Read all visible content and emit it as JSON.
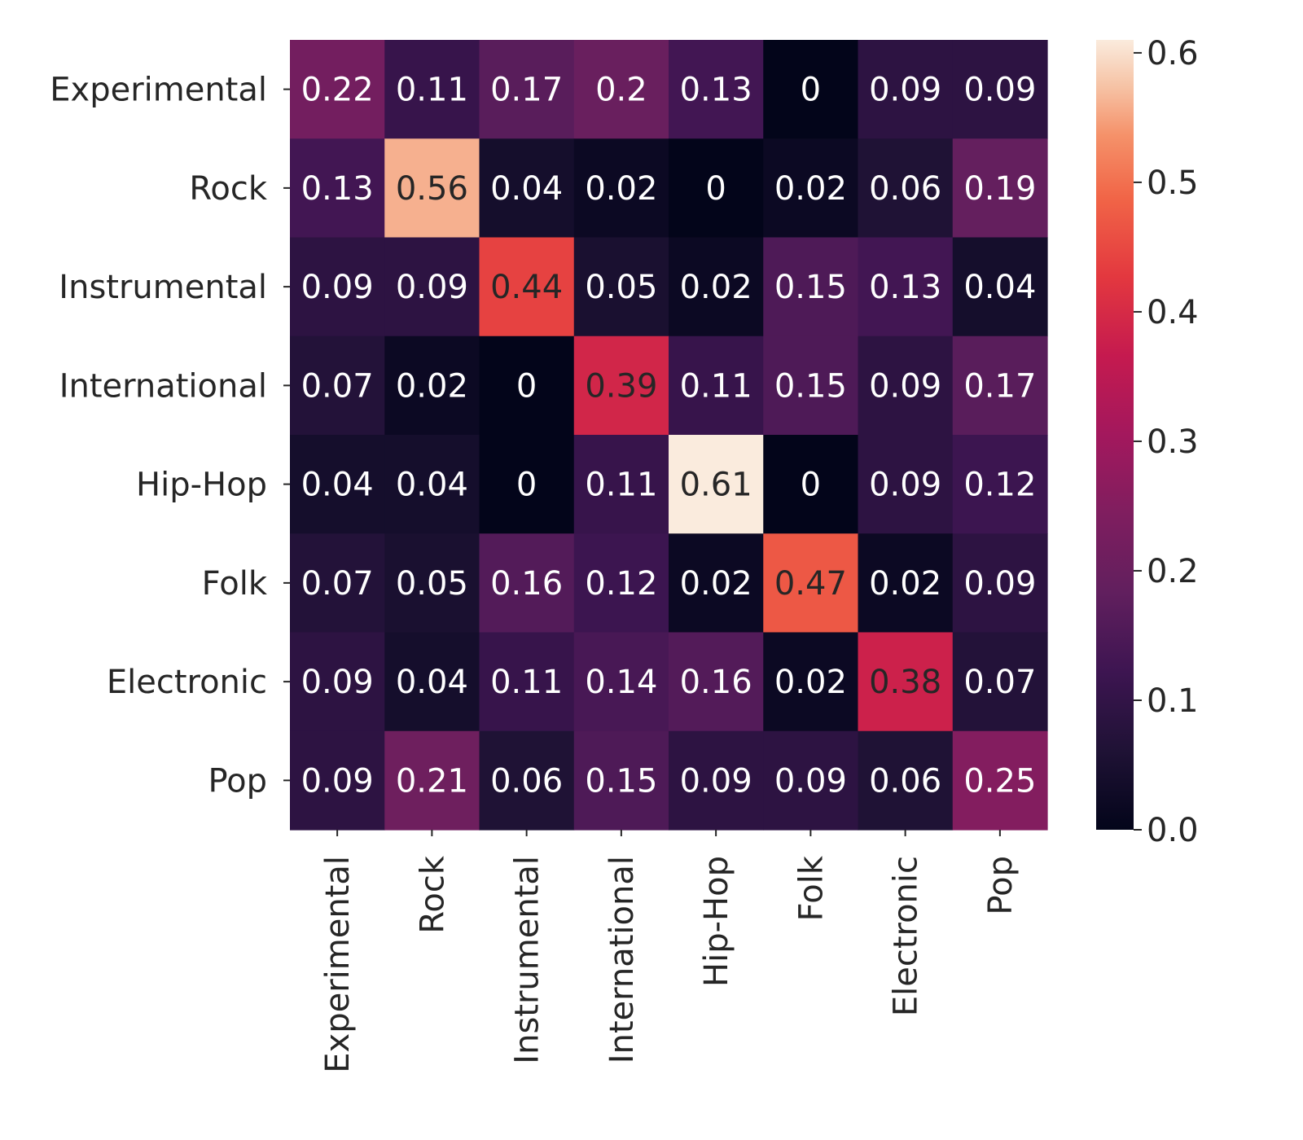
{
  "chart_data": {
    "type": "heatmap",
    "row_labels": [
      "Experimental",
      "Rock",
      "Instrumental",
      "International",
      "Hip-Hop",
      "Folk",
      "Electronic",
      "Pop"
    ],
    "col_labels": [
      "Experimental",
      "Rock",
      "Instrumental",
      "International",
      "Hip-Hop",
      "Folk",
      "Electronic",
      "Pop"
    ],
    "values": [
      [
        0.22,
        0.11,
        0.17,
        0.2,
        0.13,
        0,
        0.09,
        0.09
      ],
      [
        0.13,
        0.56,
        0.04,
        0.02,
        0,
        0.02,
        0.06,
        0.19
      ],
      [
        0.09,
        0.09,
        0.44,
        0.05,
        0.02,
        0.15,
        0.13,
        0.04
      ],
      [
        0.07,
        0.02,
        0,
        0.39,
        0.11,
        0.15,
        0.09,
        0.17
      ],
      [
        0.04,
        0.04,
        0,
        0.11,
        0.61,
        0,
        0.09,
        0.12
      ],
      [
        0.07,
        0.05,
        0.16,
        0.12,
        0.02,
        0.47,
        0.02,
        0.09
      ],
      [
        0.09,
        0.04,
        0.11,
        0.14,
        0.16,
        0.02,
        0.38,
        0.07
      ],
      [
        0.09,
        0.21,
        0.06,
        0.15,
        0.09,
        0.09,
        0.06,
        0.25
      ]
    ],
    "colormap": "rocket",
    "vmin": 0,
    "vmax": 0.61,
    "colorbar_ticks": [
      "0.0",
      "0.1",
      "0.2",
      "0.3",
      "0.4",
      "0.5",
      "0.6"
    ],
    "colors": {
      "text_light": "#ffffff",
      "text_dark": "#262626",
      "tick_color": "#262626"
    }
  }
}
